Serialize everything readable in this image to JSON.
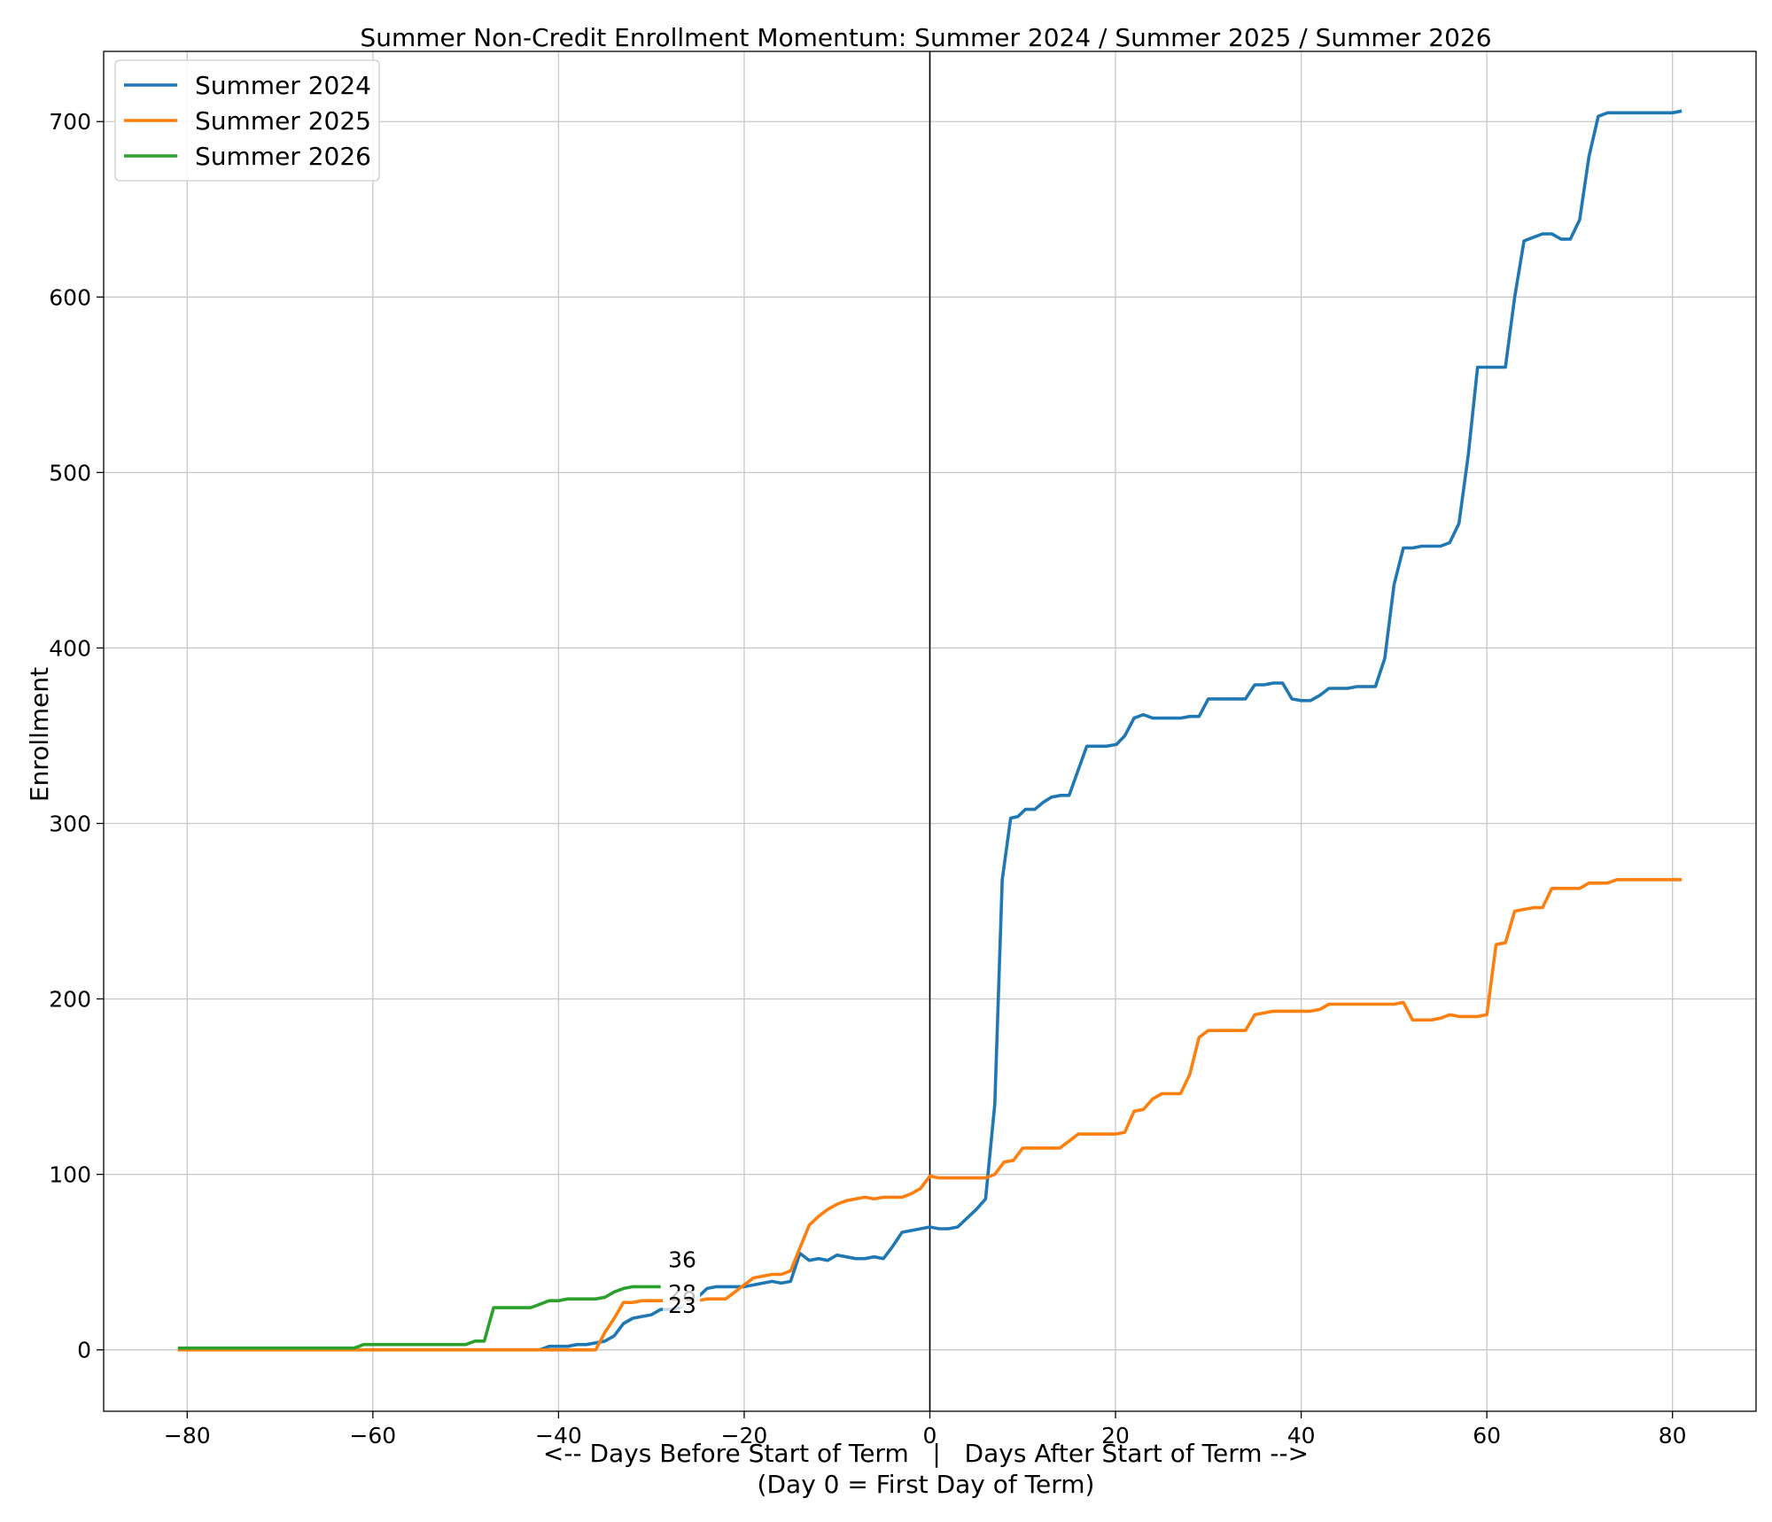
{
  "chart_data": {
    "type": "line",
    "title": "Summer Non-Credit Enrollment Momentum: Summer 2024 / Summer 2025 / Summer 2026",
    "xlabel": "<-- Days Before Start of Term   |   Days After Start of Term -->",
    "xlabel2": "(Day 0 = First Day of Term)",
    "ylabel": "Enrollment",
    "xlim": [
      -89,
      89
    ],
    "ylim": [
      -35,
      740
    ],
    "xticks": [
      -80,
      -60,
      -40,
      -20,
      0,
      20,
      40,
      60,
      80
    ],
    "yticks": [
      0,
      100,
      200,
      300,
      400,
      500,
      600,
      700
    ],
    "xtick_labels": [
      "−80",
      "−60",
      "−40",
      "−20",
      "0",
      "20",
      "40",
      "60",
      "80"
    ],
    "ytick_labels": [
      "0",
      "100",
      "200",
      "300",
      "400",
      "500",
      "600",
      "700"
    ],
    "grid": true,
    "legend_position": "top-left",
    "vline_x": 0,
    "series": [
      {
        "name": "Summer 2024",
        "color": "#1f77b4",
        "points": [
          [
            -81,
            0
          ],
          [
            -42,
            0
          ],
          [
            -41,
            2
          ],
          [
            -39,
            2
          ],
          [
            -38,
            3
          ],
          [
            -37,
            3
          ],
          [
            -36,
            4
          ],
          [
            -35,
            5
          ],
          [
            -34,
            8
          ],
          [
            -33,
            15
          ],
          [
            -32,
            18
          ],
          [
            -31,
            19
          ],
          [
            -30,
            20
          ],
          [
            -29,
            23
          ],
          [
            -28,
            23
          ],
          [
            -27,
            24
          ],
          [
            -26,
            27
          ],
          [
            -25,
            30
          ],
          [
            -24,
            35
          ],
          [
            -23,
            36
          ],
          [
            -22,
            36
          ],
          [
            -21,
            36
          ],
          [
            -20,
            36
          ],
          [
            -19,
            37
          ],
          [
            -18,
            38
          ],
          [
            -17,
            39
          ],
          [
            -16,
            38
          ],
          [
            -15,
            39
          ],
          [
            -14,
            55
          ],
          [
            -13,
            51
          ],
          [
            -12,
            52
          ],
          [
            -11,
            51
          ],
          [
            -10,
            54
          ],
          [
            -9,
            53
          ],
          [
            -8,
            52
          ],
          [
            -7,
            52
          ],
          [
            -6,
            53
          ],
          [
            -5,
            52
          ],
          [
            -4,
            59
          ],
          [
            -3,
            67
          ],
          [
            -2,
            68
          ],
          [
            -1,
            69
          ],
          [
            0,
            70
          ],
          [
            1,
            69
          ],
          [
            2,
            69
          ],
          [
            3,
            70
          ],
          [
            4,
            75
          ],
          [
            5,
            80
          ],
          [
            6,
            86
          ],
          [
            7,
            140
          ],
          [
            7.8,
            268
          ],
          [
            8.7,
            303
          ],
          [
            9.5,
            304
          ],
          [
            10.3,
            308
          ],
          [
            11.3,
            308
          ],
          [
            12.2,
            312
          ],
          [
            13.1,
            315
          ],
          [
            14.1,
            316
          ],
          [
            15,
            316
          ],
          [
            16.9,
            344
          ],
          [
            19,
            344
          ],
          [
            20.1,
            345
          ],
          [
            21,
            350
          ],
          [
            22,
            360
          ],
          [
            23,
            362
          ],
          [
            24,
            360
          ],
          [
            27,
            360
          ],
          [
            28,
            361
          ],
          [
            29,
            361
          ],
          [
            30,
            371
          ],
          [
            34,
            371
          ],
          [
            35,
            379
          ],
          [
            36,
            379
          ],
          [
            37,
            380
          ],
          [
            38,
            380
          ],
          [
            39,
            371
          ],
          [
            40,
            370
          ],
          [
            41,
            370
          ],
          [
            42,
            373
          ],
          [
            43,
            377
          ],
          [
            45,
            377
          ],
          [
            46,
            378
          ],
          [
            48,
            378
          ],
          [
            49,
            394
          ],
          [
            50,
            436
          ],
          [
            51,
            457
          ],
          [
            52,
            457
          ],
          [
            53,
            458
          ],
          [
            55,
            458
          ],
          [
            56,
            460
          ],
          [
            57,
            471
          ],
          [
            58,
            510
          ],
          [
            59,
            560
          ],
          [
            62,
            560
          ],
          [
            63,
            600
          ],
          [
            64,
            632
          ],
          [
            65,
            634
          ],
          [
            66,
            636
          ],
          [
            67,
            636
          ],
          [
            68,
            633
          ],
          [
            69,
            633
          ],
          [
            70,
            644
          ],
          [
            71,
            680
          ],
          [
            72,
            703
          ],
          [
            73,
            705
          ],
          [
            80,
            705
          ],
          [
            81,
            706
          ]
        ]
      },
      {
        "name": "Summer 2025",
        "color": "#ff7f0e",
        "points": [
          [
            -81,
            0
          ],
          [
            -36,
            0
          ],
          [
            -35,
            10
          ],
          [
            -34,
            18
          ],
          [
            -33,
            27
          ],
          [
            -32,
            27
          ],
          [
            -31,
            28
          ],
          [
            -29,
            28
          ],
          [
            -28,
            28
          ],
          [
            -26,
            28
          ],
          [
            -25,
            28
          ],
          [
            -24,
            29
          ],
          [
            -22,
            29
          ],
          [
            -21,
            33
          ],
          [
            -20,
            37
          ],
          [
            -19,
            41
          ],
          [
            -18,
            42
          ],
          [
            -17,
            43
          ],
          [
            -16,
            43
          ],
          [
            -15,
            45
          ],
          [
            -14,
            58
          ],
          [
            -13,
            71
          ],
          [
            -12,
            76
          ],
          [
            -11,
            80
          ],
          [
            -10,
            83
          ],
          [
            -9,
            85
          ],
          [
            -8,
            86
          ],
          [
            -7,
            87
          ],
          [
            -6,
            86
          ],
          [
            -5,
            87
          ],
          [
            -3,
            87
          ],
          [
            -2,
            89
          ],
          [
            -1,
            92
          ],
          [
            0,
            99
          ],
          [
            1,
            98
          ],
          [
            6,
            98
          ],
          [
            7,
            100
          ],
          [
            8,
            107
          ],
          [
            9,
            108
          ],
          [
            10,
            115
          ],
          [
            14,
            115
          ],
          [
            15,
            119
          ],
          [
            16,
            123
          ],
          [
            20,
            123
          ],
          [
            21,
            124
          ],
          [
            22,
            136
          ],
          [
            23,
            137
          ],
          [
            24,
            143
          ],
          [
            25,
            146
          ],
          [
            27,
            146
          ],
          [
            28,
            157
          ],
          [
            29,
            178
          ],
          [
            30,
            182
          ],
          [
            34,
            182
          ],
          [
            35,
            191
          ],
          [
            36,
            192
          ],
          [
            37,
            193
          ],
          [
            41,
            193
          ],
          [
            42,
            194
          ],
          [
            43,
            197
          ],
          [
            50,
            197
          ],
          [
            51,
            198
          ],
          [
            52,
            188
          ],
          [
            54,
            188
          ],
          [
            55,
            189
          ],
          [
            56,
            191
          ],
          [
            57,
            190
          ],
          [
            59,
            190
          ],
          [
            60,
            191
          ],
          [
            61,
            231
          ],
          [
            62,
            232
          ],
          [
            63,
            250
          ],
          [
            64,
            251
          ],
          [
            65,
            252
          ],
          [
            66,
            252
          ],
          [
            67,
            263
          ],
          [
            70,
            263
          ],
          [
            71,
            266
          ],
          [
            73,
            266
          ],
          [
            74,
            268
          ],
          [
            81,
            268
          ]
        ]
      },
      {
        "name": "Summer 2026",
        "color": "#2ca02c",
        "points": [
          [
            -81,
            1
          ],
          [
            -62,
            1
          ],
          [
            -61,
            3
          ],
          [
            -50,
            3
          ],
          [
            -49,
            5
          ],
          [
            -48,
            5
          ],
          [
            -47,
            24
          ],
          [
            -43,
            24
          ],
          [
            -42,
            26
          ],
          [
            -41,
            28
          ],
          [
            -40,
            28
          ],
          [
            -39,
            29
          ],
          [
            -36,
            29
          ],
          [
            -35,
            30
          ],
          [
            -34,
            33
          ],
          [
            -33,
            35
          ],
          [
            -32,
            36
          ],
          [
            -29,
            36
          ]
        ]
      }
    ],
    "annotations": [
      {
        "label": "36",
        "x": -28,
        "y": 36
      },
      {
        "label": "28",
        "x": -28,
        "y": 28
      },
      {
        "label": "23",
        "x": -28,
        "y": 23
      }
    ]
  }
}
